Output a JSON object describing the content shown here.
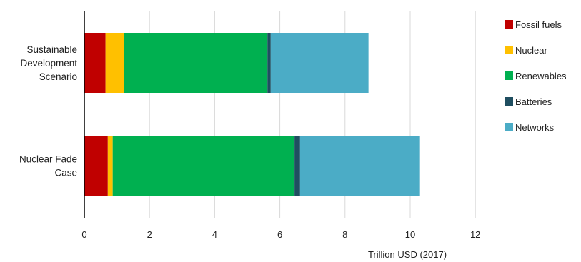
{
  "chart_data": {
    "type": "bar",
    "orientation": "horizontal",
    "stacked": true,
    "title": "",
    "xlabel": "Trillion USD (2017)",
    "ylabel": "",
    "xlim": [
      0,
      12
    ],
    "xticks": [
      0,
      2,
      4,
      6,
      8,
      10,
      12
    ],
    "grid": "vertical",
    "legend_position": "right",
    "categories": [
      [
        "Sustainable",
        "Development",
        "Scenario"
      ],
      [
        "Nuclear Fade",
        "Case"
      ]
    ],
    "series": [
      {
        "name": "Fossil fuels",
        "color": "#c00000",
        "values": [
          0.65,
          0.72
        ]
      },
      {
        "name": "Nuclear",
        "color": "#ffc000",
        "values": [
          0.57,
          0.15
        ]
      },
      {
        "name": "Renewables",
        "color": "#00b050",
        "values": [
          4.4,
          5.58
        ]
      },
      {
        "name": "Batteries",
        "color": "#1f4e60",
        "values": [
          0.1,
          0.17
        ]
      },
      {
        "name": "Networks",
        "color": "#4bacc6",
        "values": [
          3.0,
          3.68
        ]
      }
    ]
  }
}
